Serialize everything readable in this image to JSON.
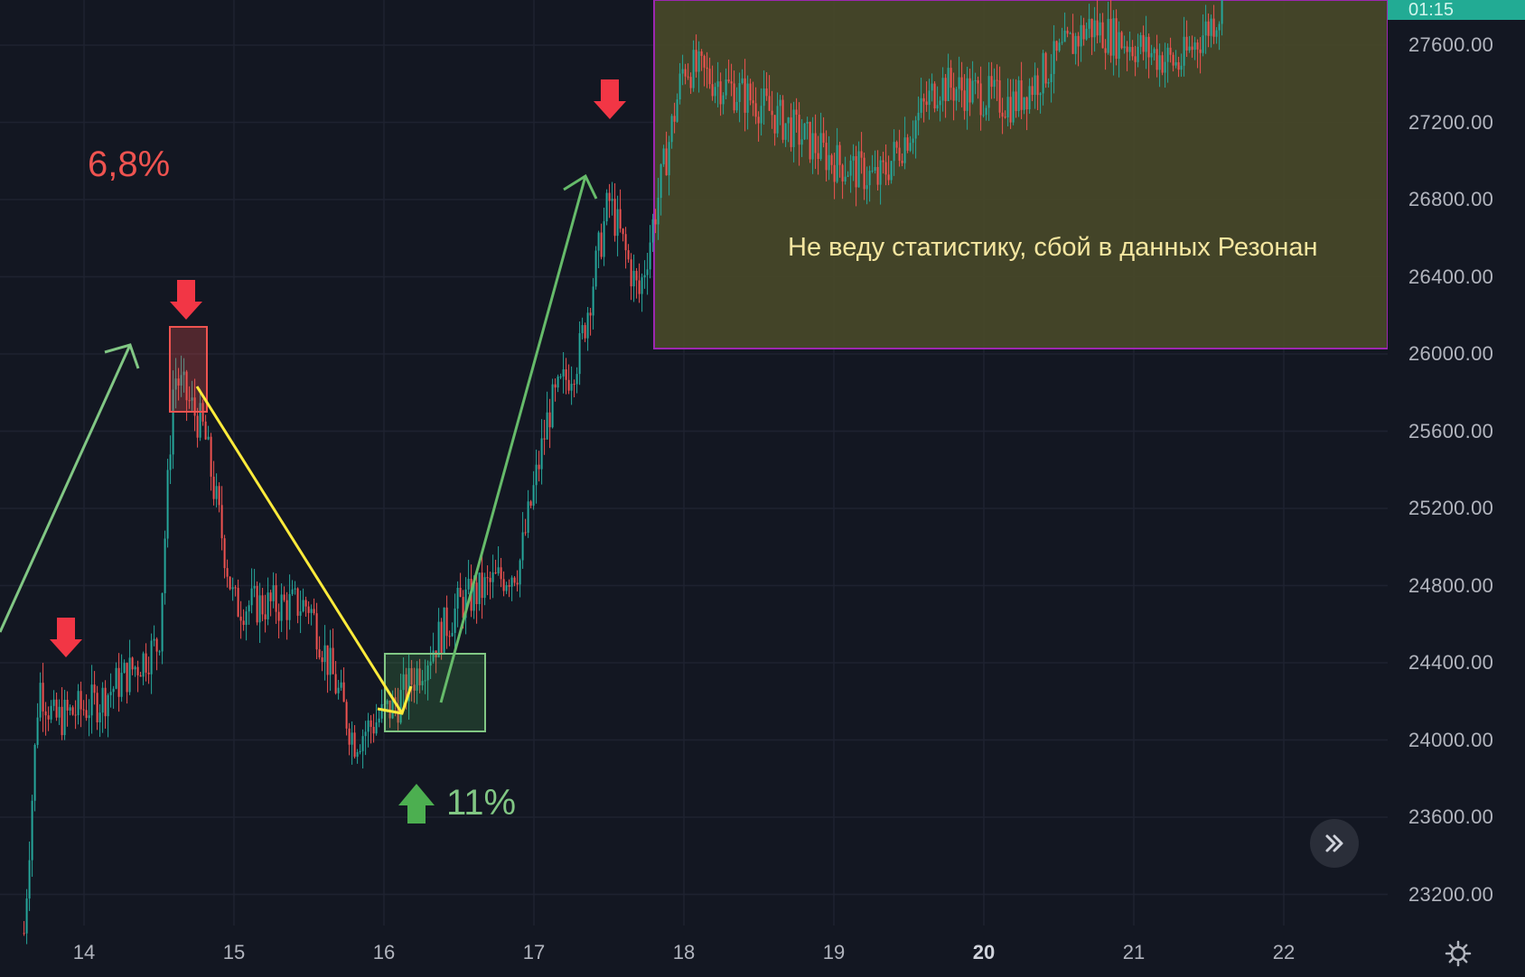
{
  "colors": {
    "background": "#131722",
    "grid": "#1e2230",
    "bull": "#26a69a",
    "bear": "#ef5350",
    "highlight_fill": "#474829",
    "highlight_border": "#9c27b0",
    "yellow_line": "#ffeb3b",
    "green_line": "#81c784",
    "red_arrow": "#f23645",
    "green_arrow": "#4caf50"
  },
  "price_axis": {
    "labels": [
      "27600.00",
      "27200.00",
      "26800.00",
      "26400.00",
      "26000.00",
      "25600.00",
      "25200.00",
      "24800.00",
      "24400.00",
      "24000.00",
      "23600.00",
      "23200.00"
    ],
    "current_price_label": "01:15"
  },
  "time_axis": {
    "labels": [
      "14",
      "15",
      "16",
      "17",
      "18",
      "19",
      "20",
      "21",
      "22"
    ],
    "bold_label": "20"
  },
  "annotations": {
    "drop_percent": "6,8%",
    "rise_percent": "11%",
    "note": "Не веду статистику, сбой в данных Резонан"
  },
  "icons": {
    "down_arrow": "arrow-down-icon",
    "up_arrow": "arrow-up-icon",
    "scroll_right": "double-chevron-right-icon",
    "settings": "gear-icon"
  },
  "chart_data": {
    "type": "candlestick",
    "x_label_days": [
      "14",
      "15",
      "16",
      "17",
      "18",
      "19",
      "20",
      "21",
      "22"
    ],
    "y_range": [
      23000,
      27800
    ],
    "approx_path": [
      {
        "day": "13.6",
        "price": 23000
      },
      {
        "day": "13.7",
        "price": 24300
      },
      {
        "day": "13.8",
        "price": 24100
      },
      {
        "day": "14.1",
        "price": 24200
      },
      {
        "day": "14.5",
        "price": 24500
      },
      {
        "day": "14.6",
        "price": 25900
      },
      {
        "day": "14.8",
        "price": 25600
      },
      {
        "day": "15.0",
        "price": 24700
      },
      {
        "day": "15.5",
        "price": 24700
      },
      {
        "day": "15.8",
        "price": 24000
      },
      {
        "day": "16.1",
        "price": 24200
      },
      {
        "day": "16.5",
        "price": 24700
      },
      {
        "day": "16.9",
        "price": 24900
      },
      {
        "day": "17.1",
        "price": 25700
      },
      {
        "day": "17.3",
        "price": 26000
      },
      {
        "day": "17.5",
        "price": 26800
      },
      {
        "day": "17.7",
        "price": 26300
      },
      {
        "day": "18.0",
        "price": 27500
      },
      {
        "day": "18.5",
        "price": 27300
      },
      {
        "day": "19.0",
        "price": 27000
      },
      {
        "day": "19.3",
        "price": 26900
      },
      {
        "day": "19.7",
        "price": 27400
      },
      {
        "day": "20.2",
        "price": 27300
      },
      {
        "day": "20.7",
        "price": 27700
      },
      {
        "day": "21.3",
        "price": 27500
      },
      {
        "day": "21.6",
        "price": 27800
      }
    ]
  }
}
